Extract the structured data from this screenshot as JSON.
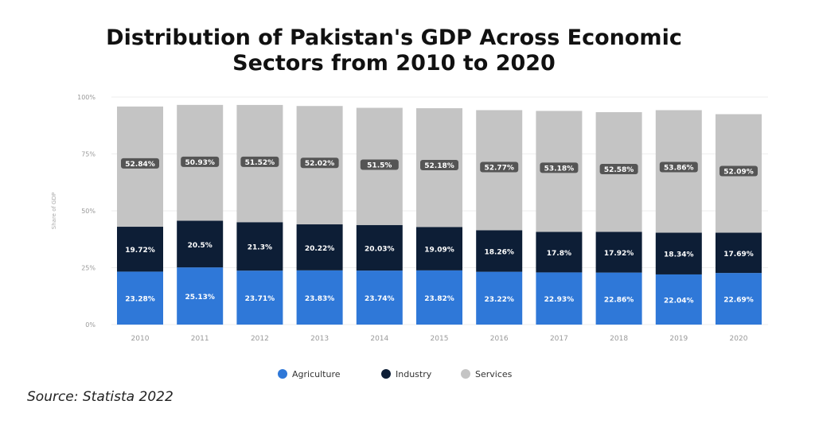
{
  "chart_data": {
    "type": "bar",
    "stacked": true,
    "title": "Distribution of Pakistan's GDP Across Economic",
    "title_line2": "Sectors from 2010 to 2020",
    "ylabel": "Share of GDP",
    "xlabel": "",
    "ylim": [
      0,
      100
    ],
    "yticks": [
      "0%",
      "25%",
      "50%",
      "75%",
      "100%"
    ],
    "categories": [
      "2010",
      "2011",
      "2012",
      "2013",
      "2014",
      "2015",
      "2016",
      "2017",
      "2018",
      "2019",
      "2020"
    ],
    "series": [
      {
        "name": "Agriculture",
        "color": "#2f78d8",
        "values": [
          23.28,
          25.13,
          23.71,
          23.83,
          23.74,
          23.82,
          23.22,
          22.93,
          22.86,
          22.04,
          22.69
        ],
        "labels": [
          "23.28%",
          "25.13%",
          "23.71%",
          "23.83%",
          "23.74%",
          "23.82%",
          "23.22%",
          "22.93%",
          "22.86%",
          "22.04%",
          "22.69%"
        ]
      },
      {
        "name": "Industry",
        "color": "#0d1e36",
        "values": [
          19.72,
          20.5,
          21.3,
          20.22,
          20.03,
          19.09,
          18.26,
          17.8,
          17.92,
          18.34,
          17.69
        ],
        "labels": [
          "19.72%",
          "20.5%",
          "21.3%",
          "20.22%",
          "20.03%",
          "19.09%",
          "18.26%",
          "17.8%",
          "17.92%",
          "18.34%",
          "17.69%"
        ]
      },
      {
        "name": "Services",
        "color": "#c4c4c4",
        "values": [
          52.84,
          50.93,
          51.52,
          52.02,
          51.5,
          52.18,
          52.77,
          53.18,
          52.58,
          53.86,
          52.09
        ],
        "labels": [
          "52.84%",
          "50.93%",
          "51.52%",
          "52.02%",
          "51.5%",
          "52.18%",
          "52.77%",
          "53.18%",
          "52.58%",
          "53.86%",
          "52.09%"
        ]
      }
    ],
    "grid": true,
    "legend_position": "bottom"
  },
  "source": "Source: Statista 2022"
}
